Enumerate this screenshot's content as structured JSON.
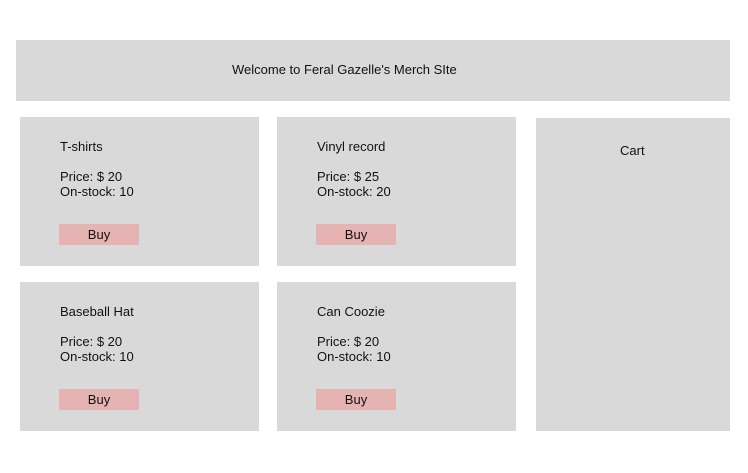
{
  "header": {
    "title": "Welcome to Feral Gazelle's Merch SIte"
  },
  "products": [
    {
      "name": "T-shirts",
      "price": "Price: $ 20",
      "stock": "On-stock: 10",
      "buy_label": "Buy"
    },
    {
      "name": "Vinyl record",
      "price": "Price: $ 25",
      "stock": "On-stock: 20",
      "buy_label": "Buy"
    },
    {
      "name": "Baseball Hat",
      "price": "Price: $ 20",
      "stock": "On-stock: 10",
      "buy_label": "Buy"
    },
    {
      "name": "Can Coozie",
      "price": "Price: $ 20",
      "stock": "On-stock: 10",
      "buy_label": "Buy"
    }
  ],
  "cart": {
    "title": "Cart"
  },
  "colors": {
    "panel": "#d9d9d9",
    "button": "#e6b3b3",
    "text": "#111111"
  }
}
